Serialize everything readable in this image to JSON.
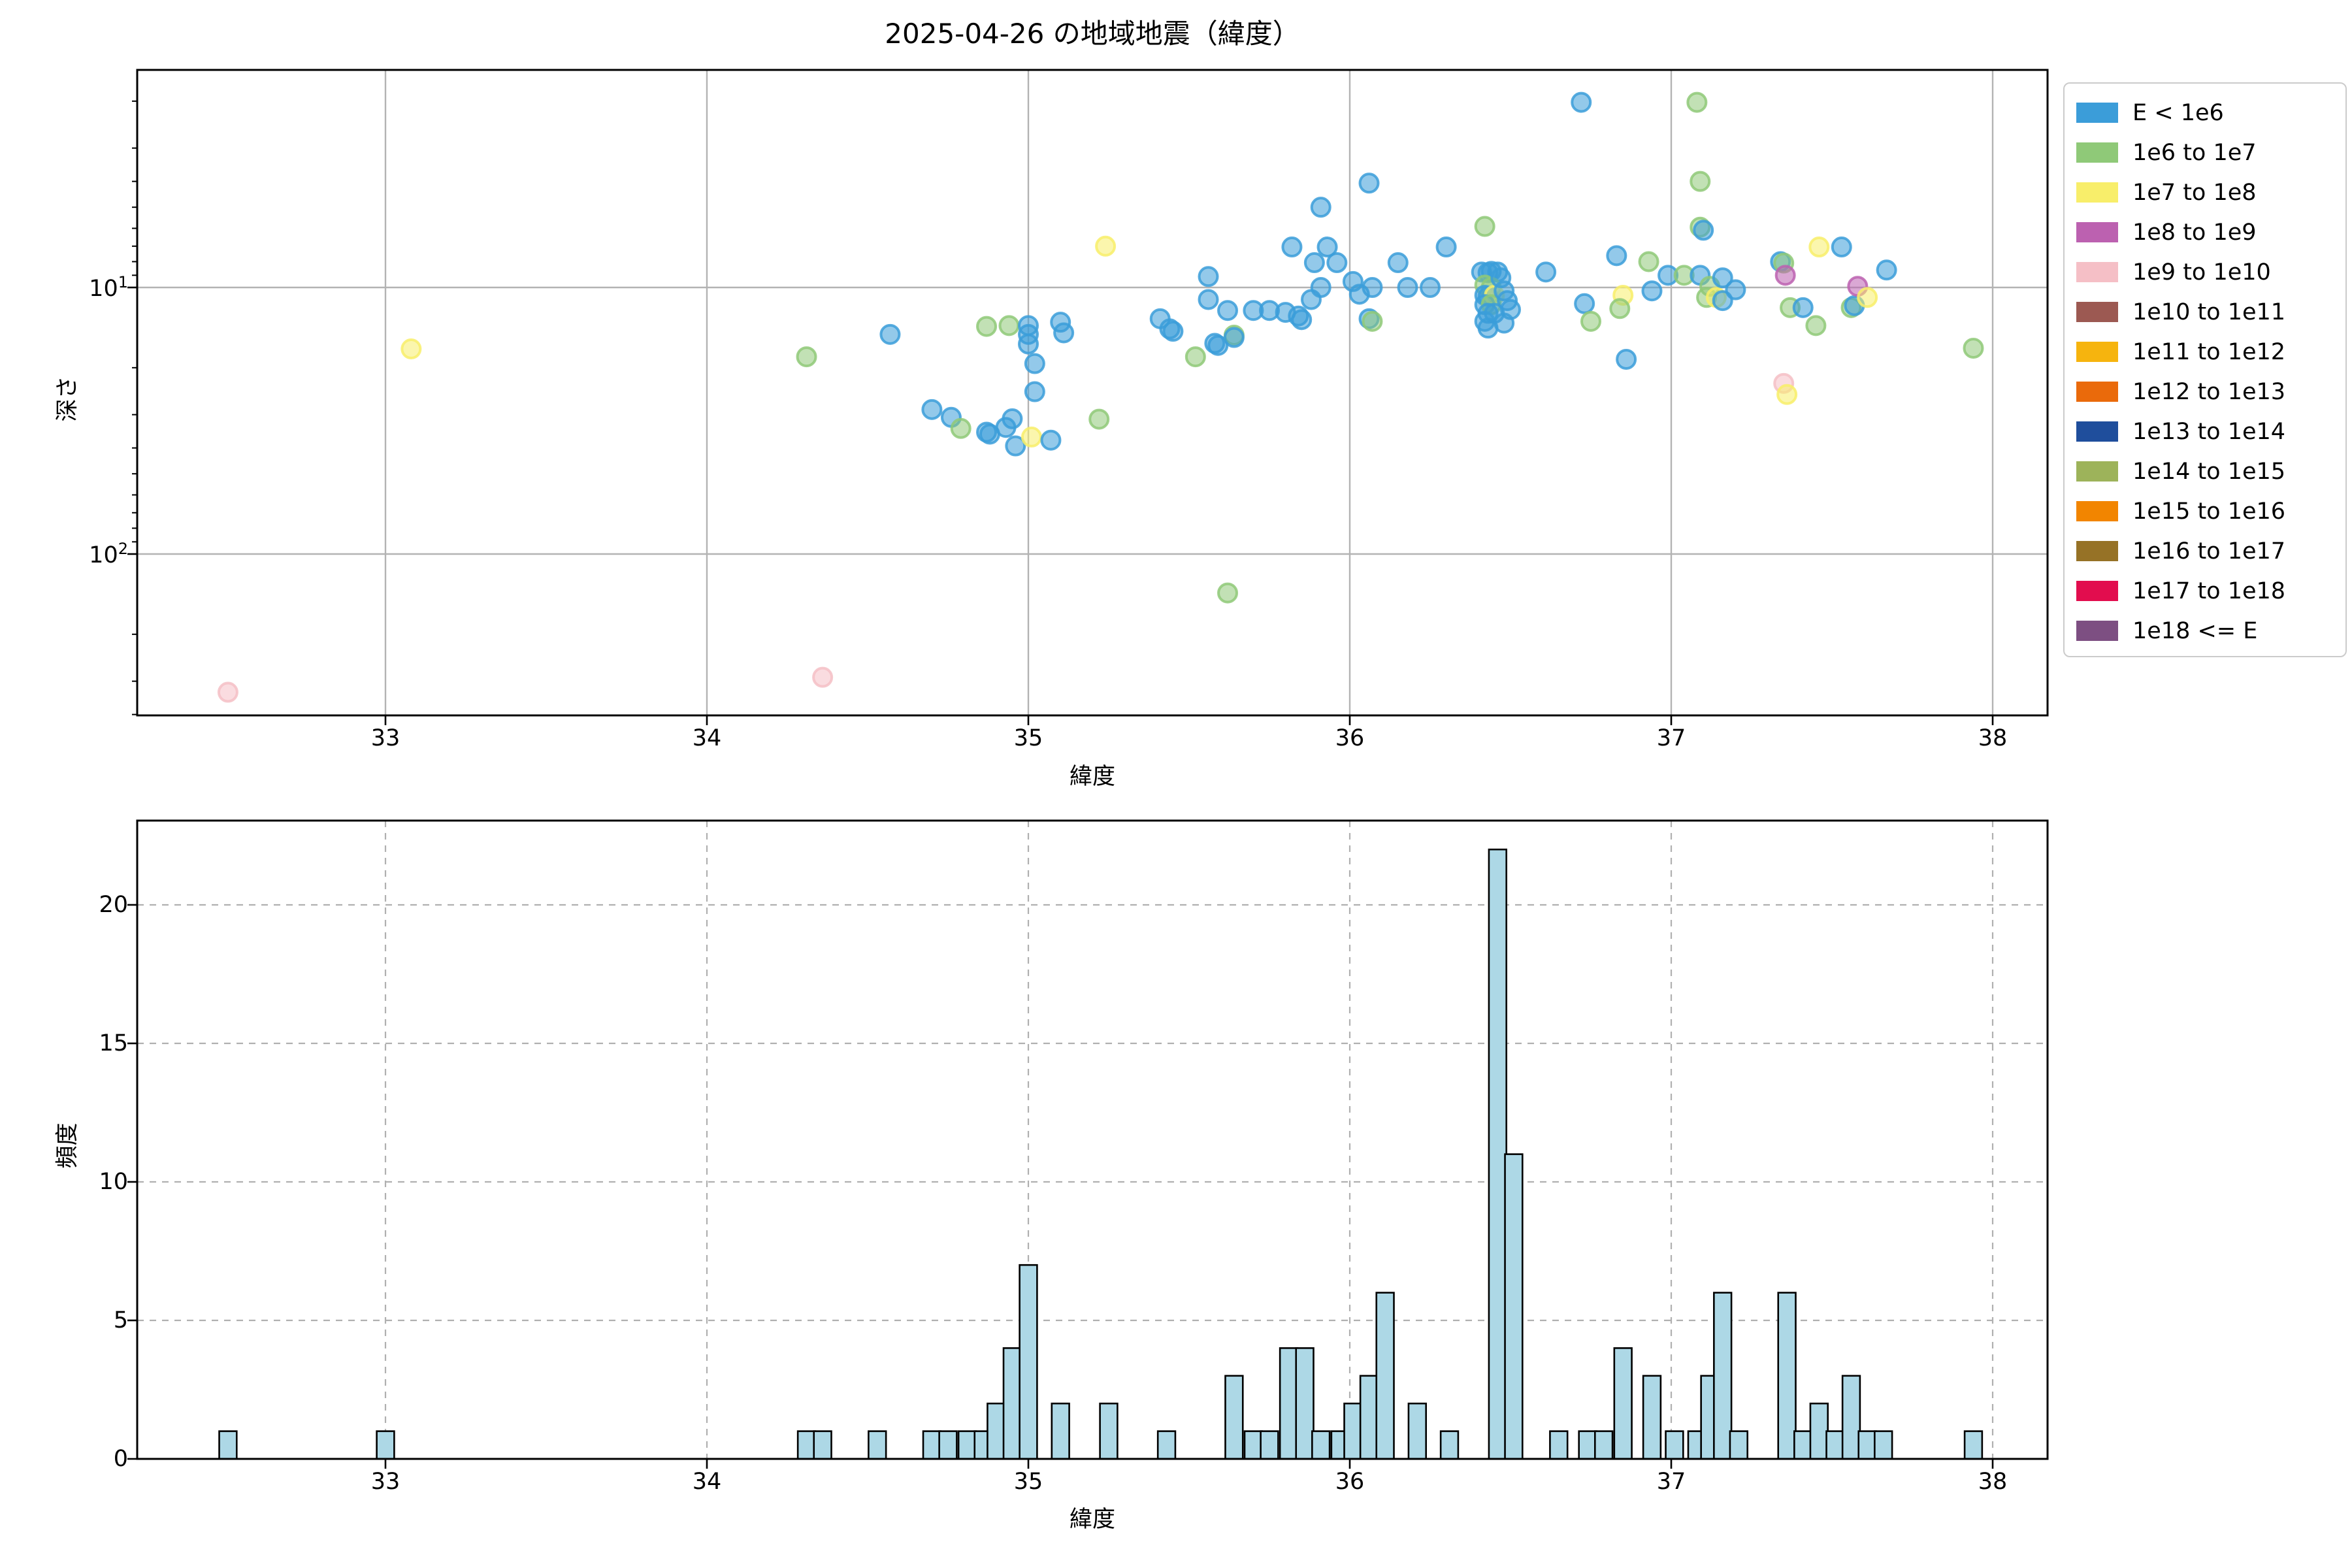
{
  "figure": {
    "title": "2025-04-26 の地域地震（緯度）",
    "background": "#ffffff"
  },
  "legend": {
    "position": "upper right, outside axes",
    "entries": [
      {
        "label": "E < 1e6",
        "color": "#3B9DD9"
      },
      {
        "label": "1e6 to 1e7",
        "color": "#8FC978"
      },
      {
        "label": "1e7 to 1e8",
        "color": "#F8EE6A"
      },
      {
        "label": "1e8 to 1e9",
        "color": "#BC61B0"
      },
      {
        "label": "1e9 to 1e10",
        "color": "#F5BFC6"
      },
      {
        "label": "1e10 to 1e11",
        "color": "#9C5952"
      },
      {
        "label": "1e11 to 1e12",
        "color": "#F6B40E"
      },
      {
        "label": "1e12 to 1e13",
        "color": "#EA6A0B"
      },
      {
        "label": "1e13 to 1e14",
        "color": "#1F4E9C"
      },
      {
        "label": "1e14 to 1e15",
        "color": "#9DB35A"
      },
      {
        "label": "1e15 to 1e16",
        "color": "#F28500"
      },
      {
        "label": "1e16 to 1e17",
        "color": "#967226"
      },
      {
        "label": "1e17 to 1e18",
        "color": "#E20D4E"
      },
      {
        "label": "1e18 <= E",
        "color": "#7D4F82"
      }
    ]
  },
  "chart_data": [
    {
      "type": "scatter",
      "title": "2025-04-26 の地域地震（緯度）",
      "xlabel": "緯度",
      "ylabel": "深さ",
      "xlim": [
        32.23,
        38.17
      ],
      "x_ticks": [
        33,
        34,
        35,
        36,
        37,
        38
      ],
      "y_scale": "log-inverted",
      "ylim_depth": [
        1.53,
        403
      ],
      "y_ticks": [
        {
          "value": 10,
          "label_base": "10",
          "label_exp": "1"
        },
        {
          "value": 100,
          "label_base": "10",
          "label_exp": "2"
        }
      ],
      "grid": "solid gray, major x and y",
      "point_alpha": 0.55,
      "points_format": "[latitude, depth_km, energy_bin_index]",
      "points": [
        [
          32.51,
          330,
          4
        ],
        [
          33.08,
          17,
          2
        ],
        [
          34.31,
          18.2,
          1
        ],
        [
          34.36,
          290,
          4
        ],
        [
          34.57,
          15,
          0
        ],
        [
          34.7,
          28.7,
          0
        ],
        [
          34.76,
          30.7,
          0
        ],
        [
          34.79,
          33.8,
          1
        ],
        [
          34.87,
          34.9,
          0
        ],
        [
          34.88,
          35.5,
          0
        ],
        [
          34.87,
          14.0,
          1
        ],
        [
          34.94,
          13.9,
          1
        ],
        [
          34.93,
          33.5,
          0
        ],
        [
          34.95,
          31.1,
          0
        ],
        [
          34.96,
          39.3,
          0
        ],
        [
          35.0,
          13.9,
          0
        ],
        [
          35.0,
          15.0,
          0
        ],
        [
          35.0,
          16.3,
          0
        ],
        [
          35.01,
          36.4,
          2
        ],
        [
          35.02,
          19.3,
          0
        ],
        [
          35.02,
          24.6,
          0
        ],
        [
          35.07,
          37.4,
          0
        ],
        [
          35.1,
          13.5,
          0
        ],
        [
          35.11,
          14.8,
          0
        ],
        [
          35.22,
          31.2,
          1
        ],
        [
          35.24,
          7.0,
          2
        ],
        [
          35.41,
          13.1,
          0
        ],
        [
          35.44,
          14.3,
          0
        ],
        [
          35.45,
          14.6,
          0
        ],
        [
          35.52,
          18.2,
          1
        ],
        [
          35.56,
          9.1,
          0
        ],
        [
          35.56,
          11.1,
          0
        ],
        [
          35.58,
          16.2,
          0
        ],
        [
          35.59,
          16.5,
          0
        ],
        [
          35.62,
          12.2,
          0
        ],
        [
          35.64,
          15.1,
          1
        ],
        [
          35.64,
          15.4,
          0
        ],
        [
          35.62,
          140,
          1
        ],
        [
          35.7,
          12.2,
          0
        ],
        [
          35.75,
          12.2,
          0
        ],
        [
          35.8,
          12.4,
          0
        ],
        [
          35.82,
          7.05,
          0
        ],
        [
          35.84,
          12.8,
          0
        ],
        [
          35.85,
          13.2,
          0
        ],
        [
          35.88,
          11.1,
          0
        ],
        [
          35.89,
          8.07,
          0
        ],
        [
          35.91,
          5.0,
          0
        ],
        [
          35.91,
          10.0,
          0
        ],
        [
          35.93,
          7.05,
          0
        ],
        [
          35.96,
          8.07,
          0
        ],
        [
          36.01,
          9.5,
          0
        ],
        [
          36.03,
          10.6,
          0
        ],
        [
          36.06,
          4.06,
          0
        ],
        [
          36.06,
          13.1,
          0
        ],
        [
          36.07,
          13.4,
          1
        ],
        [
          36.07,
          10.0,
          0
        ],
        [
          36.15,
          8.07,
          0
        ],
        [
          36.18,
          10.0,
          0
        ],
        [
          36.25,
          10.0,
          0
        ],
        [
          36.3,
          7.05,
          0
        ],
        [
          36.42,
          5.9,
          1
        ],
        [
          36.41,
          8.75,
          0
        ],
        [
          36.43,
          8.8,
          0
        ],
        [
          36.44,
          8.7,
          0
        ],
        [
          36.46,
          8.75,
          0
        ],
        [
          36.42,
          9.8,
          1
        ],
        [
          36.44,
          10.0,
          1
        ],
        [
          36.42,
          10.7,
          0
        ],
        [
          36.43,
          10.8,
          0
        ],
        [
          36.45,
          10.7,
          2
        ],
        [
          36.42,
          11.6,
          0
        ],
        [
          36.44,
          11.6,
          1
        ],
        [
          36.43,
          12.5,
          0
        ],
        [
          36.45,
          12.5,
          0
        ],
        [
          36.42,
          13.4,
          0
        ],
        [
          36.43,
          14.2,
          0
        ],
        [
          36.47,
          9.2,
          0
        ],
        [
          36.48,
          10.3,
          0
        ],
        [
          36.49,
          11.2,
          0
        ],
        [
          36.5,
          12.1,
          0
        ],
        [
          36.48,
          13.6,
          0
        ],
        [
          36.61,
          8.75,
          0
        ],
        [
          36.72,
          2.02,
          0
        ],
        [
          36.73,
          11.5,
          0
        ],
        [
          36.75,
          13.4,
          1
        ],
        [
          36.83,
          7.6,
          0
        ],
        [
          36.85,
          10.7,
          2
        ],
        [
          36.84,
          12.0,
          1
        ],
        [
          36.86,
          18.6,
          0
        ],
        [
          36.93,
          8.0,
          1
        ],
        [
          36.94,
          10.3,
          0
        ],
        [
          36.99,
          9.0,
          0
        ],
        [
          37.04,
          9.0,
          1
        ],
        [
          37.08,
          2.02,
          1
        ],
        [
          37.09,
          4.0,
          1
        ],
        [
          37.09,
          5.94,
          1
        ],
        [
          37.1,
          6.1,
          0
        ],
        [
          37.09,
          9.0,
          0
        ],
        [
          37.12,
          9.9,
          1
        ],
        [
          37.11,
          10.9,
          1
        ],
        [
          37.14,
          10.9,
          2
        ],
        [
          37.16,
          9.2,
          0
        ],
        [
          37.16,
          11.2,
          0
        ],
        [
          37.2,
          10.2,
          0
        ],
        [
          37.34,
          8.0,
          0
        ],
        [
          37.35,
          8.1,
          1
        ],
        [
          37.355,
          9.0,
          3
        ],
        [
          37.35,
          22.9,
          4
        ],
        [
          37.36,
          25.2,
          2
        ],
        [
          37.37,
          11.9,
          1
        ],
        [
          37.41,
          11.9,
          0
        ],
        [
          37.45,
          13.9,
          1
        ],
        [
          37.46,
          7.05,
          2
        ],
        [
          37.53,
          7.05,
          0
        ],
        [
          37.56,
          11.9,
          1
        ],
        [
          37.57,
          11.7,
          0
        ],
        [
          37.58,
          9.9,
          3
        ],
        [
          37.61,
          10.9,
          2
        ],
        [
          37.67,
          8.6,
          0
        ],
        [
          37.94,
          16.9,
          1
        ]
      ]
    },
    {
      "type": "bar",
      "title": "",
      "xlabel": "緯度",
      "ylabel": "頻度",
      "xlim": [
        32.23,
        38.17
      ],
      "x_ticks": [
        33,
        34,
        35,
        36,
        37,
        38
      ],
      "ylim": [
        0,
        23.1
      ],
      "y_ticks": [
        0,
        5,
        10,
        15,
        20
      ],
      "grid": "dashed gray, major x and y",
      "bar_color": "#ADD8E6",
      "bar_edge_color": "#000000",
      "bin_width": 0.0544,
      "bars_format": "[bin_center_latitude, frequency]",
      "bars": [
        [
          32.51,
          1
        ],
        [
          33.0,
          1
        ],
        [
          34.31,
          1
        ],
        [
          34.36,
          1
        ],
        [
          34.53,
          1
        ],
        [
          34.7,
          1
        ],
        [
          34.75,
          1
        ],
        [
          34.81,
          1
        ],
        [
          34.86,
          1
        ],
        [
          34.9,
          2
        ],
        [
          34.95,
          4
        ],
        [
          35.0,
          7
        ],
        [
          35.1,
          2
        ],
        [
          35.25,
          2
        ],
        [
          35.43,
          1
        ],
        [
          35.64,
          3
        ],
        [
          35.7,
          1
        ],
        [
          35.75,
          1
        ],
        [
          35.81,
          4
        ],
        [
          35.86,
          4
        ],
        [
          35.91,
          1
        ],
        [
          35.97,
          1
        ],
        [
          36.01,
          2
        ],
        [
          36.06,
          3
        ],
        [
          36.11,
          6
        ],
        [
          36.21,
          2
        ],
        [
          36.31,
          1
        ],
        [
          36.46,
          22
        ],
        [
          36.51,
          11
        ],
        [
          36.65,
          1
        ],
        [
          36.74,
          1
        ],
        [
          36.79,
          1
        ],
        [
          36.85,
          4
        ],
        [
          36.94,
          3
        ],
        [
          37.01,
          1
        ],
        [
          37.08,
          1
        ],
        [
          37.12,
          3
        ],
        [
          37.16,
          6
        ],
        [
          37.21,
          1
        ],
        [
          37.36,
          6
        ],
        [
          37.41,
          1
        ],
        [
          37.46,
          2
        ],
        [
          37.51,
          1
        ],
        [
          37.56,
          3
        ],
        [
          37.61,
          1
        ],
        [
          37.66,
          1
        ],
        [
          37.94,
          1
        ]
      ]
    }
  ]
}
